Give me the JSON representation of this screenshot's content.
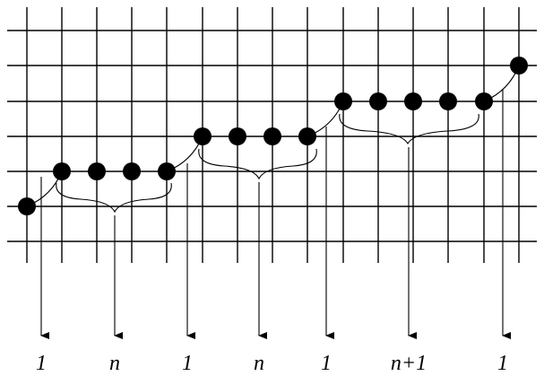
{
  "labels": {
    "seg1": "1",
    "seg2": "n",
    "seg3": "1",
    "seg4": "n",
    "seg5": "1",
    "seg6": "n+1",
    "seg7": "1"
  }
}
